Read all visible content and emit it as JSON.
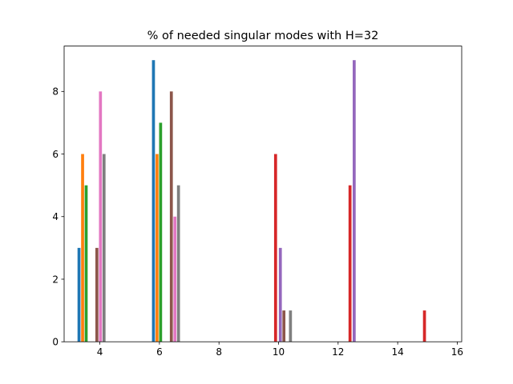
{
  "chart_data": {
    "type": "bar",
    "title": "% of needed singular modes with H=32",
    "xlabel": "",
    "ylabel": "",
    "xlim": [
      2.8,
      16.15
    ],
    "ylim": [
      0,
      9.45
    ],
    "xticks": [
      4,
      6,
      8,
      10,
      12,
      14,
      16
    ],
    "yticks": [
      0,
      2,
      4,
      6,
      8
    ],
    "bar_width": 0.1,
    "grid": false,
    "legend": "none",
    "bars": [
      {
        "x": 3.3,
        "value": 3,
        "color": "#1f77b4"
      },
      {
        "x": 3.42,
        "value": 6,
        "color": "#ff7f0e"
      },
      {
        "x": 3.54,
        "value": 5,
        "color": "#2ca02c"
      },
      {
        "x": 3.9,
        "value": 3,
        "color": "#8c564b"
      },
      {
        "x": 4.02,
        "value": 8,
        "color": "#e377c2"
      },
      {
        "x": 4.14,
        "value": 6,
        "color": "#7f7f7f"
      },
      {
        "x": 5.8,
        "value": 9,
        "color": "#1f77b4"
      },
      {
        "x": 5.92,
        "value": 6,
        "color": "#ff7f0e"
      },
      {
        "x": 6.04,
        "value": 7,
        "color": "#2ca02c"
      },
      {
        "x": 6.4,
        "value": 8,
        "color": "#8c564b"
      },
      {
        "x": 6.52,
        "value": 4,
        "color": "#e377c2"
      },
      {
        "x": 6.64,
        "value": 5,
        "color": "#7f7f7f"
      },
      {
        "x": 9.9,
        "value": 6,
        "color": "#d62728"
      },
      {
        "x": 10.06,
        "value": 3,
        "color": "#9467bd"
      },
      {
        "x": 10.18,
        "value": 1,
        "color": "#8c564b"
      },
      {
        "x": 10.4,
        "value": 1,
        "color": "#7f7f7f"
      },
      {
        "x": 12.4,
        "value": 5,
        "color": "#d62728"
      },
      {
        "x": 12.54,
        "value": 9,
        "color": "#9467bd"
      },
      {
        "x": 14.9,
        "value": 1,
        "color": "#d62728"
      }
    ]
  }
}
